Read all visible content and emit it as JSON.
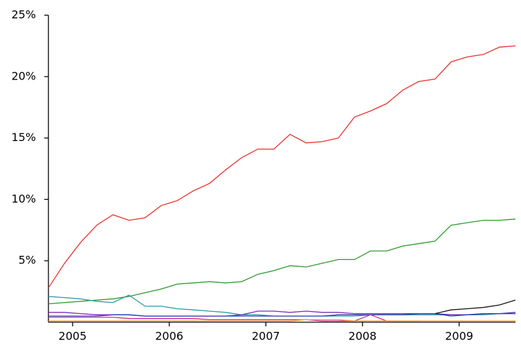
{
  "chart_data": {
    "type": "line",
    "x": [
      2004.75,
      2004.917,
      2005.083,
      2005.25,
      2005.417,
      2005.583,
      2005.75,
      2005.917,
      2006.083,
      2006.25,
      2006.417,
      2006.583,
      2006.75,
      2006.917,
      2007.083,
      2007.25,
      2007.417,
      2007.583,
      2007.75,
      2007.917,
      2008.083,
      2008.25,
      2008.417,
      2008.583,
      2008.75,
      2008.917,
      2009.083,
      2009.25,
      2009.417,
      2009.583
    ],
    "series": [
      {
        "color": "#e8302a",
        "values": [
          2.8,
          4.8,
          6.5,
          7.9,
          8.75,
          8.3,
          8.5,
          9.5,
          9.9,
          10.7,
          11.3,
          12.4,
          13.4,
          14.1,
          14.1,
          15.3,
          14.6,
          14.7,
          15.0,
          16.7,
          17.2,
          17.8,
          18.9,
          19.6,
          19.8,
          21.2,
          21.6,
          21.8,
          22.4,
          22.5
        ]
      },
      {
        "color": "#2a9a2a",
        "values": [
          1.5,
          1.6,
          1.7,
          1.8,
          1.9,
          2.1,
          2.4,
          2.7,
          3.1,
          3.2,
          3.3,
          3.2,
          3.3,
          3.9,
          4.2,
          4.6,
          4.5,
          4.8,
          5.1,
          5.1,
          5.8,
          5.8,
          6.2,
          6.4,
          6.6,
          7.9,
          8.1,
          8.3,
          8.3,
          8.4
        ]
      },
      {
        "color": "#2a9aa8",
        "values": [
          2.1,
          2.0,
          1.9,
          1.7,
          1.6,
          2.2,
          1.3,
          1.3,
          1.1,
          1.0,
          0.9,
          0.8,
          0.6,
          0.6,
          0.5,
          0.5,
          0.5,
          0.5,
          0.5,
          0.5,
          0.6,
          0.6,
          0.6,
          0.6,
          0.6,
          0.6,
          0.6,
          0.6,
          0.7,
          0.7
        ]
      },
      {
        "color": "#7a2ab8",
        "values": [
          0.8,
          0.8,
          0.7,
          0.6,
          0.6,
          0.6,
          0.5,
          0.5,
          0.5,
          0.5,
          0.5,
          0.5,
          0.6,
          0.9,
          0.9,
          0.8,
          0.9,
          0.8,
          0.8,
          0.7,
          0.7,
          0.7,
          0.7,
          0.7,
          0.7,
          0.6,
          0.6,
          0.7,
          0.7,
          0.7
        ]
      },
      {
        "color": "#2a3ab8",
        "values": [
          0.5,
          0.5,
          0.5,
          0.5,
          0.6,
          0.6,
          0.5,
          0.5,
          0.5,
          0.5,
          0.5,
          0.5,
          0.5,
          0.5,
          0.5,
          0.5,
          0.5,
          0.5,
          0.6,
          0.6,
          0.6,
          0.6,
          0.6,
          0.7,
          0.7,
          0.5,
          0.6,
          0.7,
          0.7,
          0.8
        ]
      },
      {
        "color": "#c82a9a",
        "values": [
          0.4,
          0.4,
          0.4,
          0.4,
          0.4,
          0.3,
          0.3,
          0.3,
          0.3,
          0.3,
          0.2,
          0.2,
          0.2,
          0.2,
          0.2,
          0.2,
          0.2,
          0.1,
          0.1,
          0.1,
          0.6,
          0.1,
          0.1,
          0.1,
          null,
          null,
          null,
          null,
          null,
          null
        ]
      },
      {
        "color": "#e8a030",
        "values": [
          0.1,
          0.1,
          0.1,
          0.1,
          0.1,
          0.1,
          0.1,
          0.1,
          0.1,
          0.1,
          0.1,
          0.1,
          0.1,
          0.1,
          0.1,
          0.1,
          0.2,
          0.2,
          0.2,
          0.1,
          0.1,
          0.1,
          0.1,
          0.1,
          0.1,
          0.1,
          0.1,
          0.1,
          0.1,
          0.1
        ]
      },
      {
        "color": "#111111",
        "values": [
          null,
          null,
          null,
          null,
          null,
          null,
          null,
          null,
          null,
          null,
          null,
          null,
          null,
          null,
          null,
          null,
          null,
          null,
          null,
          null,
          null,
          null,
          null,
          null,
          0.7,
          1.0,
          1.1,
          1.2,
          1.4,
          1.8
        ]
      }
    ],
    "xlim": [
      2004.75,
      2009.583
    ],
    "xticks": [
      2005,
      2006,
      2007,
      2008,
      2009
    ],
    "ylim": [
      0,
      25
    ],
    "yticks": [
      {
        "value": 5,
        "label": "5%"
      },
      {
        "value": 10,
        "label": "10%"
      },
      {
        "value": 15,
        "label": "15%"
      },
      {
        "value": 20,
        "label": "20%"
      },
      {
        "value": 25,
        "label": "25%"
      }
    ],
    "grid": false
  }
}
